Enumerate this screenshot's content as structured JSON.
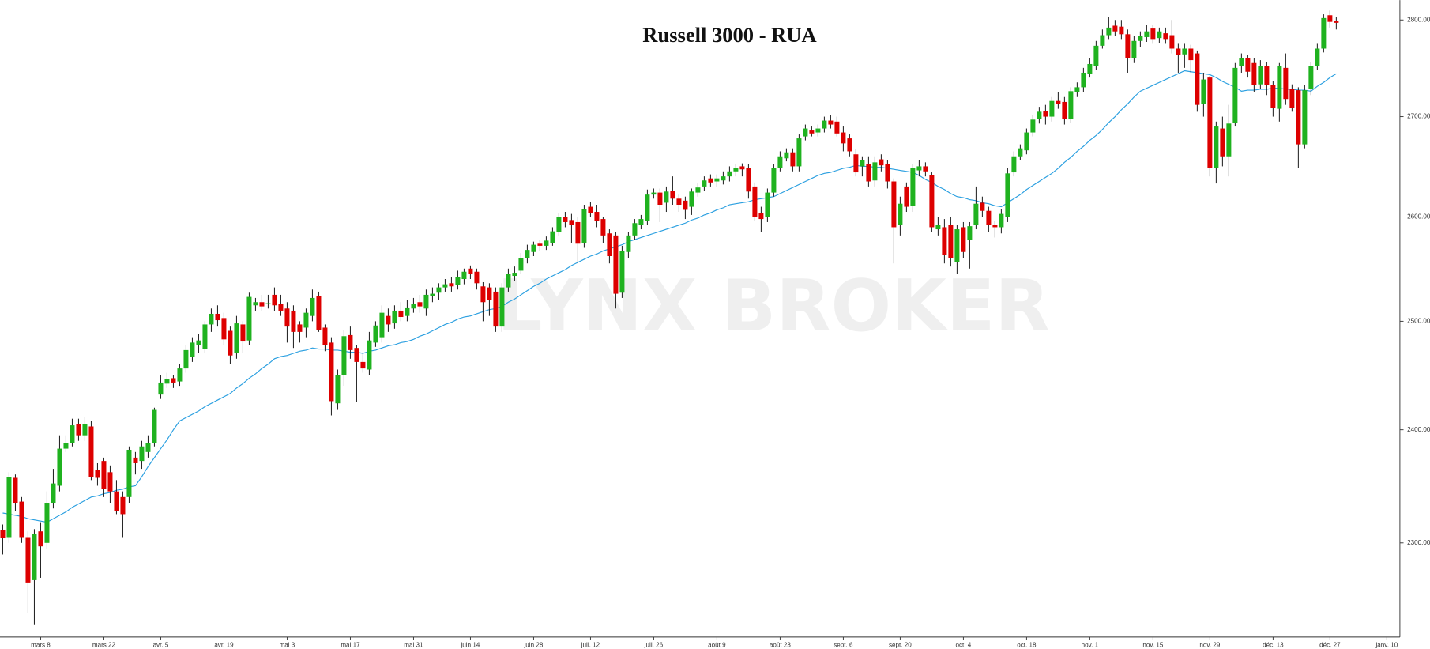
{
  "chart_data": {
    "type": "candlestick",
    "title": "Russell 3000 - RUA",
    "watermark": "LYNX BROKER",
    "log_scale": true,
    "up_color": "#1fb21f",
    "down_color": "#dd0000",
    "ylim": [
      2220,
      2821
    ],
    "yticks": [
      {
        "value": 2300,
        "label": "2300.00"
      },
      {
        "value": 2400,
        "label": "2400.00"
      },
      {
        "value": 2500,
        "label": "2500.00"
      },
      {
        "value": 2600,
        "label": "2600.00"
      },
      {
        "value": 2700,
        "label": "2700.00"
      },
      {
        "value": 2800,
        "label": "2800.00"
      }
    ],
    "categories": [
      null,
      null,
      null,
      null,
      null,
      null,
      "mars 8",
      null,
      null,
      null,
      null,
      null,
      null,
      null,
      null,
      null,
      "mars 22",
      null,
      null,
      null,
      null,
      null,
      null,
      null,
      null,
      "avr. 5",
      null,
      null,
      null,
      null,
      null,
      null,
      null,
      null,
      null,
      "avr. 19",
      null,
      null,
      null,
      null,
      null,
      null,
      null,
      null,
      null,
      "mai 3",
      null,
      null,
      null,
      null,
      null,
      null,
      null,
      null,
      null,
      "mai 17",
      null,
      null,
      null,
      null,
      null,
      null,
      null,
      null,
      null,
      "mai 31",
      null,
      null,
      null,
      null,
      null,
      null,
      null,
      null,
      "juin 14",
      null,
      null,
      null,
      null,
      null,
      null,
      null,
      null,
      null,
      "juin 28",
      null,
      null,
      null,
      null,
      null,
      null,
      null,
      null,
      "juil. 12",
      null,
      null,
      null,
      null,
      null,
      null,
      null,
      null,
      null,
      "juil. 26",
      null,
      null,
      null,
      null,
      null,
      null,
      null,
      null,
      null,
      "août 9",
      null,
      null,
      null,
      null,
      null,
      null,
      null,
      null,
      null,
      "août 23",
      null,
      null,
      null,
      null,
      null,
      null,
      null,
      null,
      null,
      "sept. 6",
      null,
      null,
      null,
      null,
      null,
      null,
      null,
      null,
      "sept. 20",
      null,
      null,
      null,
      null,
      null,
      null,
      null,
      null,
      null,
      "oct. 4",
      null,
      null,
      null,
      null,
      null,
      null,
      null,
      null,
      null,
      "oct. 18",
      null,
      null,
      null,
      null,
      null,
      null,
      null,
      null,
      null,
      "nov. 1",
      null,
      null,
      null,
      null,
      null,
      null,
      null,
      null,
      null,
      "nov. 15",
      null,
      null,
      null,
      null,
      null,
      null,
      null,
      null,
      "nov. 29",
      null,
      null,
      null,
      null,
      null,
      null,
      null,
      null,
      null,
      "déc. 13",
      null,
      null,
      null,
      null,
      null,
      null,
      null,
      null,
      "déc. 27",
      null,
      null,
      null,
      null,
      null,
      null,
      null,
      null,
      "janv. 10"
    ],
    "open": [
      2311,
      2305,
      2357,
      2336,
      2305,
      2268,
      2310,
      2300,
      2335,
      2350,
      2383,
      2388,
      2405,
      2395,
      2403,
      2364,
      2372,
      2362,
      2345,
      2340,
      2340,
      2375,
      2372,
      2380,
      2388,
      2432,
      2442,
      2447,
      2444,
      2456,
      2467,
      2478,
      2474,
      2497,
      2507,
      2503,
      2491,
      2470,
      2497,
      2482,
      2515,
      2518,
      2516,
      2525,
      2516,
      2512,
      2510,
      2497,
      2494,
      2505,
      2524,
      2494,
      2480,
      2424,
      2450,
      2487,
      2475,
      2462,
      2455,
      2480,
      2485,
      2505,
      2498,
      2510,
      2505,
      2512,
      2518,
      2512,
      2524,
      2527,
      2532,
      2536,
      2534,
      2540,
      2550,
      2547,
      2533,
      2532,
      2528,
      2495,
      2532,
      2543,
      2548,
      2560,
      2566,
      2574,
      2572,
      2575,
      2585,
      2600,
      2597,
      2595,
      2575,
      2610,
      2605,
      2598,
      2584,
      2582,
      2527,
      2566,
      2582,
      2592,
      2596,
      2622,
      2624,
      2614,
      2626,
      2618,
      2616,
      2610,
      2624,
      2630,
      2638,
      2635,
      2636,
      2640,
      2645,
      2650,
      2648,
      2630,
      2604,
      2600,
      2624,
      2648,
      2658,
      2664,
      2650,
      2680,
      2686,
      2684,
      2688,
      2696,
      2695,
      2684,
      2678,
      2662,
      2650,
      2652,
      2636,
      2657,
      2652,
      2635,
      2592,
      2630,
      2611,
      2646,
      2650,
      2641,
      2588,
      2590,
      2592,
      2556,
      2590,
      2578,
      2592,
      2614,
      2606,
      2592,
      2590,
      2600,
      2644,
      2660,
      2666,
      2684,
      2698,
      2706,
      2700,
      2716,
      2715,
      2698,
      2725,
      2730,
      2744,
      2752,
      2773,
      2784,
      2794,
      2793,
      2785,
      2760,
      2778,
      2782,
      2791,
      2781,
      2786,
      2784,
      2770,
      2764,
      2770,
      2765,
      2713,
      2740,
      2648,
      2688,
      2660,
      2694,
      2752,
      2760,
      2755,
      2733,
      2752,
      2732,
      2708,
      2750,
      2728,
      2727,
      2672,
      2728,
      2752,
      2770,
      2805,
      2799,
      null,
      null,
      null,
      null,
      null,
      null,
      null,
      null
    ],
    "high": [
      2316,
      2362,
      2360,
      2340,
      2310,
      2312,
      2318,
      2345,
      2365,
      2395,
      2395,
      2410,
      2410,
      2412,
      2408,
      2370,
      2375,
      2368,
      2355,
      2345,
      2385,
      2380,
      2390,
      2395,
      2420,
      2450,
      2452,
      2450,
      2460,
      2478,
      2485,
      2488,
      2500,
      2512,
      2515,
      2508,
      2495,
      2505,
      2500,
      2527,
      2522,
      2525,
      2525,
      2532,
      2525,
      2518,
      2515,
      2500,
      2512,
      2530,
      2528,
      2497,
      2485,
      2455,
      2492,
      2495,
      2478,
      2470,
      2490,
      2500,
      2515,
      2512,
      2515,
      2518,
      2520,
      2522,
      2525,
      2530,
      2532,
      2536,
      2540,
      2542,
      2548,
      2550,
      2553,
      2550,
      2537,
      2536,
      2532,
      2536,
      2550,
      2552,
      2565,
      2573,
      2576,
      2578,
      2581,
      2590,
      2604,
      2605,
      2603,
      2600,
      2612,
      2615,
      2612,
      2600,
      2588,
      2585,
      2572,
      2585,
      2598,
      2602,
      2627,
      2628,
      2628,
      2630,
      2640,
      2622,
      2620,
      2628,
      2633,
      2640,
      2642,
      2642,
      2645,
      2650,
      2652,
      2653,
      2652,
      2634,
      2610,
      2628,
      2652,
      2665,
      2668,
      2668,
      2682,
      2692,
      2690,
      2692,
      2700,
      2702,
      2700,
      2690,
      2682,
      2667,
      2660,
      2660,
      2660,
      2662,
      2656,
      2638,
      2620,
      2634,
      2652,
      2656,
      2654,
      2644,
      2600,
      2598,
      2600,
      2592,
      2595,
      2595,
      2630,
      2620,
      2610,
      2596,
      2608,
      2648,
      2665,
      2672,
      2688,
      2702,
      2710,
      2712,
      2720,
      2725,
      2720,
      2730,
      2735,
      2750,
      2760,
      2778,
      2790,
      2803,
      2800,
      2800,
      2790,
      2783,
      2788,
      2795,
      2795,
      2792,
      2792,
      2800,
      2775,
      2775,
      2774,
      2768,
      2745,
      2742,
      2695,
      2700,
      2712,
      2755,
      2765,
      2763,
      2760,
      2758,
      2756,
      2736,
      2755,
      2765,
      2733,
      2730,
      2732,
      2756,
      2775,
      2806,
      2810,
      2803,
      null,
      null,
      null,
      null,
      null,
      null,
      null,
      null
    ],
    "low": [
      2290,
      2300,
      2328,
      2300,
      2240,
      2230,
      2270,
      2295,
      2330,
      2345,
      2380,
      2385,
      2390,
      2390,
      2355,
      2350,
      2340,
      2335,
      2325,
      2305,
      2335,
      2360,
      2365,
      2375,
      2385,
      2428,
      2438,
      2438,
      2440,
      2452,
      2462,
      2470,
      2470,
      2490,
      2495,
      2478,
      2460,
      2465,
      2470,
      2478,
      2510,
      2510,
      2512,
      2510,
      2505,
      2480,
      2475,
      2480,
      2485,
      2500,
      2490,
      2472,
      2413,
      2418,
      2440,
      2465,
      2425,
      2452,
      2450,
      2476,
      2480,
      2490,
      2493,
      2500,
      2500,
      2508,
      2508,
      2505,
      2518,
      2520,
      2528,
      2528,
      2530,
      2535,
      2540,
      2530,
      2500,
      2505,
      2490,
      2490,
      2528,
      2538,
      2545,
      2555,
      2562,
      2567,
      2568,
      2572,
      2582,
      2590,
      2575,
      2555,
      2570,
      2600,
      2590,
      2575,
      2555,
      2512,
      2522,
      2560,
      2578,
      2588,
      2592,
      2618,
      2595,
      2605,
      2612,
      2605,
      2598,
      2602,
      2620,
      2626,
      2630,
      2630,
      2632,
      2635,
      2640,
      2640,
      2618,
      2596,
      2585,
      2595,
      2620,
      2645,
      2655,
      2645,
      2645,
      2676,
      2680,
      2680,
      2684,
      2688,
      2680,
      2665,
      2660,
      2640,
      2640,
      2630,
      2630,
      2645,
      2628,
      2555,
      2582,
      2605,
      2605,
      2640,
      2640,
      2585,
      2582,
      2555,
      2552,
      2545,
      2560,
      2550,
      2588,
      2600,
      2585,
      2580,
      2584,
      2595,
      2640,
      2656,
      2662,
      2680,
      2693,
      2692,
      2695,
      2708,
      2692,
      2694,
      2720,
      2725,
      2740,
      2748,
      2770,
      2780,
      2783,
      2780,
      2745,
      2755,
      2772,
      2777,
      2775,
      2776,
      2775,
      2765,
      2745,
      2750,
      2745,
      2705,
      2700,
      2640,
      2633,
      2650,
      2640,
      2690,
      2745,
      2740,
      2725,
      2728,
      2722,
      2700,
      2695,
      2712,
      2705,
      2648,
      2668,
      2722,
      2748,
      2766,
      2792,
      2790,
      null,
      null,
      null,
      null,
      null,
      null,
      null,
      null
    ],
    "close": [
      2304,
      2358,
      2335,
      2305,
      2266,
      2308,
      2297,
      2335,
      2352,
      2383,
      2388,
      2404,
      2395,
      2405,
      2358,
      2357,
      2347,
      2345,
      2328,
      2325,
      2382,
      2370,
      2385,
      2388,
      2418,
      2443,
      2446,
      2443,
      2456,
      2473,
      2480,
      2482,
      2497,
      2507,
      2501,
      2483,
      2468,
      2498,
      2481,
      2523,
      2518,
      2514,
      2517,
      2515,
      2510,
      2495,
      2490,
      2490,
      2508,
      2522,
      2492,
      2478,
      2426,
      2450,
      2486,
      2473,
      2462,
      2456,
      2482,
      2496,
      2508,
      2497,
      2510,
      2504,
      2513,
      2516,
      2514,
      2525,
      2526,
      2532,
      2535,
      2533,
      2542,
      2547,
      2545,
      2536,
      2518,
      2520,
      2495,
      2532,
      2545,
      2546,
      2560,
      2568,
      2573,
      2572,
      2577,
      2586,
      2600,
      2595,
      2592,
      2574,
      2608,
      2604,
      2596,
      2582,
      2562,
      2526,
      2567,
      2582,
      2594,
      2598,
      2622,
      2624,
      2612,
      2625,
      2618,
      2612,
      2607,
      2625,
      2629,
      2636,
      2634,
      2638,
      2640,
      2645,
      2648,
      2647,
      2625,
      2600,
      2598,
      2624,
      2648,
      2660,
      2664,
      2650,
      2678,
      2688,
      2683,
      2688,
      2696,
      2692,
      2683,
      2673,
      2665,
      2644,
      2656,
      2635,
      2654,
      2651,
      2635,
      2590,
      2613,
      2610,
      2648,
      2650,
      2645,
      2590,
      2592,
      2563,
      2560,
      2588,
      2566,
      2591,
      2613,
      2606,
      2592,
      2590,
      2603,
      2643,
      2660,
      2668,
      2684,
      2697,
      2705,
      2700,
      2716,
      2713,
      2698,
      2726,
      2730,
      2745,
      2754,
      2773,
      2784,
      2792,
      2788,
      2785,
      2760,
      2778,
      2783,
      2788,
      2780,
      2788,
      2780,
      2770,
      2763,
      2770,
      2758,
      2712,
      2738,
      2648,
      2690,
      2660,
      2693,
      2750,
      2760,
      2746,
      2732,
      2752,
      2732,
      2709,
      2752,
      2718,
      2709,
      2672,
      2727,
      2752,
      2770,
      2802,
      2798,
      2797,
      null,
      null,
      null,
      null,
      null,
      null,
      null,
      null
    ],
    "overlay": {
      "type": "line",
      "color": "#2a9fe0",
      "values": [
        2326,
        2325,
        2324,
        2323,
        2321,
        2320,
        2319,
        2318,
        2321,
        2324,
        2327,
        2331,
        2334,
        2337,
        2340,
        2341,
        2343,
        2344,
        2346,
        2347,
        2349,
        2350,
        2358,
        2367,
        2375,
        2383,
        2391,
        2400,
        2408,
        2411,
        2414,
        2417,
        2421,
        2424,
        2427,
        2430,
        2433,
        2438,
        2442,
        2447,
        2451,
        2456,
        2460,
        2465,
        2467,
        2468,
        2470,
        2472,
        2473,
        2475,
        2474,
        2474,
        2473,
        2473,
        2472,
        2471,
        2471,
        2470,
        2472,
        2473,
        2475,
        2477,
        2478,
        2480,
        2481,
        2483,
        2486,
        2488,
        2491,
        2494,
        2497,
        2499,
        2502,
        2504,
        2505,
        2507,
        2509,
        2511,
        2512,
        2514,
        2518,
        2521,
        2525,
        2529,
        2533,
        2536,
        2540,
        2543,
        2546,
        2549,
        2553,
        2556,
        2559,
        2562,
        2564,
        2567,
        2569,
        2571,
        2573,
        2576,
        2578,
        2580,
        2582,
        2584,
        2586,
        2588,
        2590,
        2592,
        2594,
        2597,
        2599,
        2602,
        2604,
        2607,
        2609,
        2612,
        2613,
        2614,
        2615,
        2617,
        2618,
        2619,
        2620,
        2623,
        2626,
        2629,
        2632,
        2635,
        2638,
        2641,
        2643,
        2644,
        2646,
        2648,
        2649,
        2651,
        2650,
        2650,
        2649,
        2649,
        2648,
        2647,
        2646,
        2645,
        2644,
        2641,
        2637,
        2634,
        2630,
        2627,
        2623,
        2620,
        2619,
        2617,
        2616,
        2614,
        2613,
        2611,
        2610,
        2614,
        2618,
        2622,
        2627,
        2631,
        2635,
        2639,
        2643,
        2648,
        2654,
        2659,
        2665,
        2670,
        2676,
        2681,
        2687,
        2694,
        2700,
        2707,
        2713,
        2720,
        2726,
        2729,
        2732,
        2735,
        2738,
        2741,
        2744,
        2747,
        2746,
        2745,
        2744,
        2743,
        2740,
        2736,
        2733,
        2730,
        2726,
        2727,
        2727,
        2728,
        2728,
        2729,
        2729,
        2728,
        2728,
        2727,
        2727,
        2726,
        2731,
        2735,
        2740,
        2744,
        null,
        null,
        null,
        null,
        null,
        null,
        null,
        null
      ]
    }
  }
}
